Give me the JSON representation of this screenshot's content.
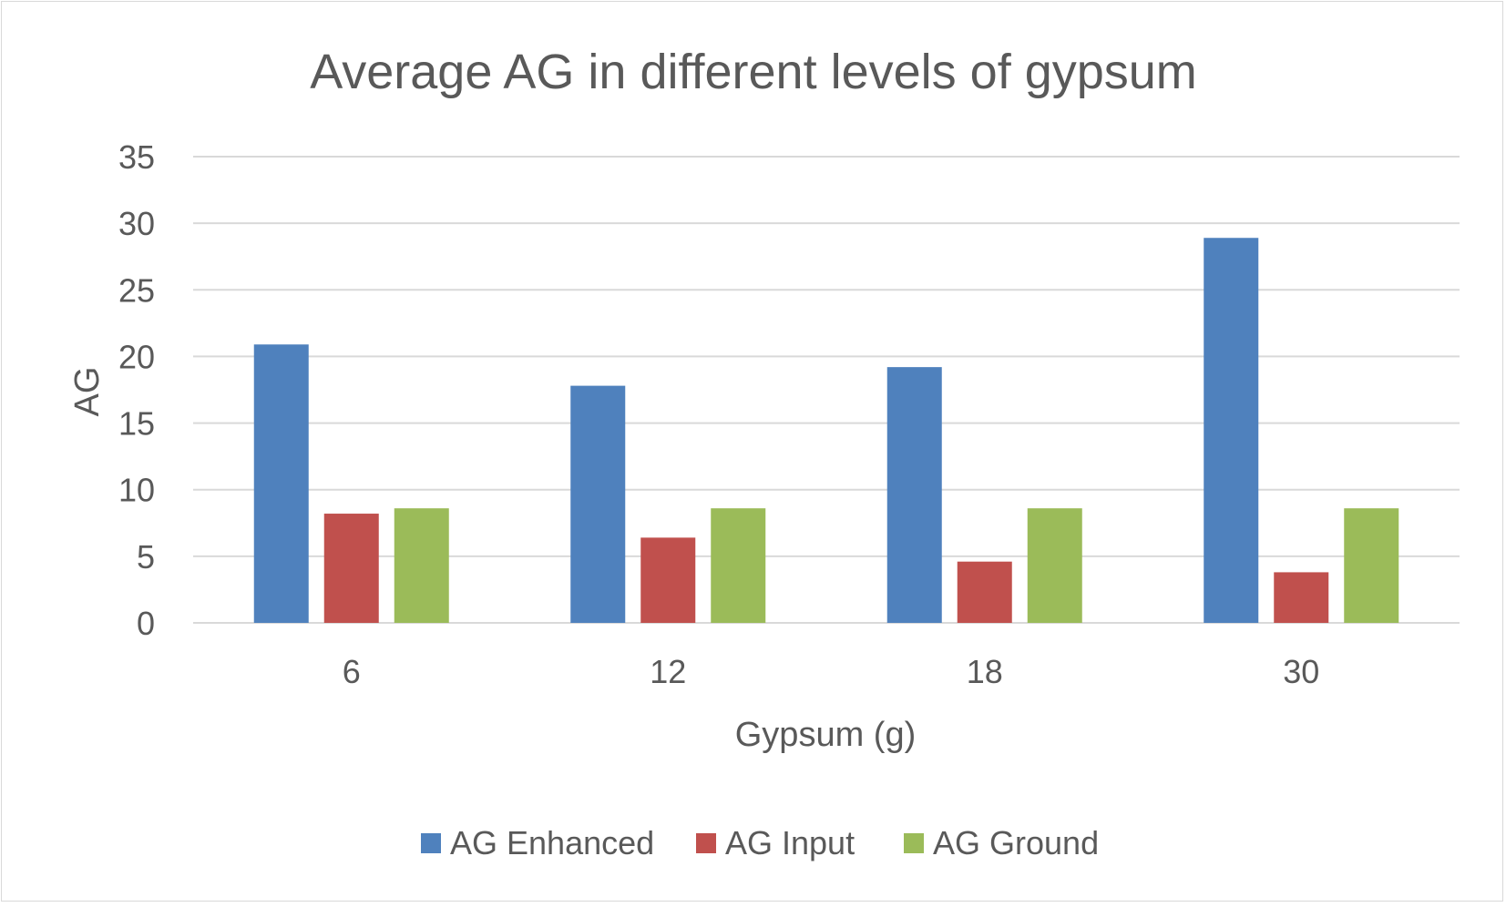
{
  "chart_data": {
    "type": "bar",
    "title": "Average AG in different levels of gypsum",
    "xlabel": "Gypsum (g)",
    "ylabel": "AG",
    "categories": [
      "6",
      "12",
      "18",
      "30"
    ],
    "ylim": [
      0,
      35
    ],
    "yticks": [
      "0",
      "5",
      "10",
      "15",
      "20",
      "25",
      "30",
      "35"
    ],
    "grid": true,
    "legend_position": "bottom",
    "series": [
      {
        "name": "AG Enhanced",
        "color": "#4f81bd",
        "values": [
          20.9,
          17.8,
          19.2,
          28.9
        ]
      },
      {
        "name": "AG Input",
        "color": "#c0504d",
        "values": [
          8.2,
          6.4,
          4.6,
          3.8
        ]
      },
      {
        "name": "AG Ground",
        "color": "#9bbb59",
        "values": [
          8.6,
          8.6,
          8.6,
          8.6
        ]
      }
    ]
  }
}
